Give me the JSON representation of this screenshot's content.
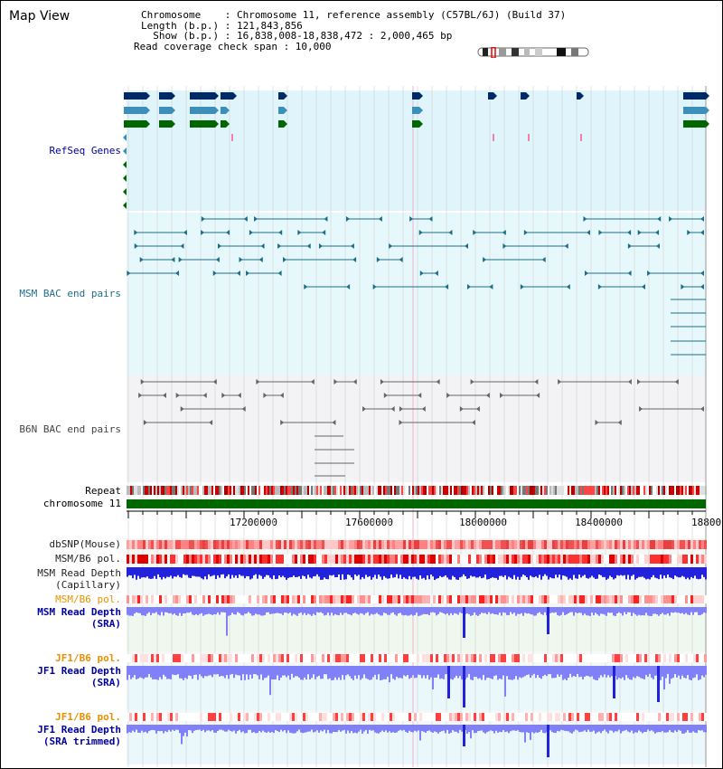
{
  "page": {
    "title": "Map View"
  },
  "info": {
    "chromosome_line": "Chromosome    : Chromosome 11, reference assembly (C57BL/6J) (Build 37)",
    "length_line": "Length (b.p.) : 121,843,856",
    "show_line": "  Show (b.p.) : 16,838,008-18,838,472 : 2,000,465 bp",
    "span_line": "Read coverage check span : 10,000"
  },
  "tracks": {
    "refseq": "RefSeq Genes",
    "msm_bac": "MSM BAC end pairs",
    "b6n_bac": "B6N BAC end pairs",
    "repeat": "Repeat",
    "chromosome": "chromosome 11",
    "dbsnp": "dbSNP(Mouse)",
    "msm_b6_pol_1": "MSM/B6 pol.",
    "msm_rd_cap_1": "MSM Read Depth",
    "msm_rd_cap_2": "(Capillary)",
    "msm_b6_pol_2": "MSM/B6 pol.",
    "msm_rd_sra_1": "MSM Read Depth",
    "msm_rd_sra_2": "(SRA)",
    "jf1_b6_pol_1": "JF1/B6 pol.",
    "jf1_rd_sra_1": "JF1 Read Depth",
    "jf1_rd_sra_2": "(SRA)",
    "jf1_b6_pol_2": "JF1/B6 pol.",
    "jf1_rd_trim_1": "JF1 Read Depth",
    "jf1_rd_trim_2": "(SRA trimmed)"
  },
  "axis": {
    "ticks": [
      "17200000",
      "17600000",
      "18000000",
      "18400000",
      "18800"
    ]
  },
  "colors": {
    "refseq_bg": "#e0f4fb",
    "msm_bg": "#e6f8fb",
    "b6n_bg": "#f3f3f6",
    "navy": "#002a66",
    "midblue": "#3c8fb8",
    "green": "#006600",
    "teal": "#1e6e8a",
    "gray": "#666666",
    "depth_blue": "#2222dd",
    "depth_light": "#8080f8",
    "label_blue": "#0000a0",
    "label_orange": "#e89000"
  }
}
